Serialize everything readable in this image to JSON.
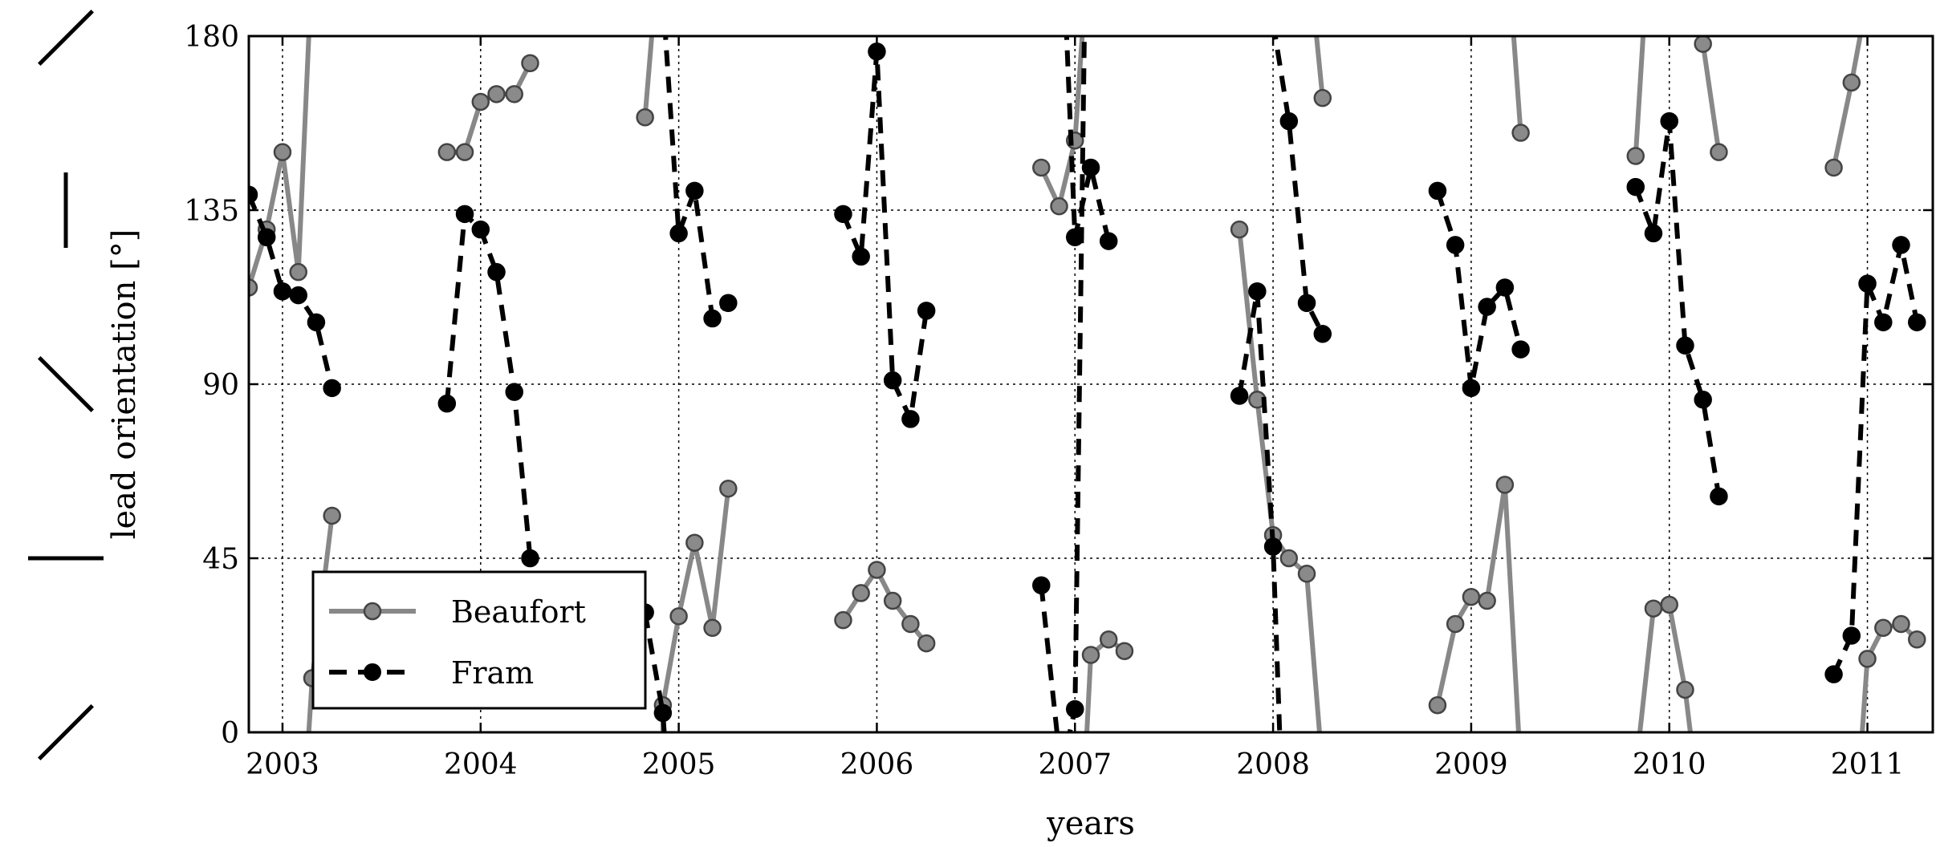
{
  "chart_data": {
    "type": "line",
    "xlabel": "years",
    "ylabel": "lead orientation [°]",
    "xlim": [
      2002.83,
      2011.33
    ],
    "ylim": [
      0,
      180
    ],
    "xticks": [
      2003,
      2004,
      2005,
      2006,
      2007,
      2008,
      2009,
      2010,
      2011
    ],
    "xtick_labels": [
      "2003",
      "2004",
      "2005",
      "2006",
      "2007",
      "2008",
      "2009",
      "2010",
      "2011"
    ],
    "yticks": [
      0,
      45,
      90,
      135,
      180
    ],
    "ytick_labels": [
      "0",
      "45",
      "90",
      "135",
      "180"
    ],
    "grid": true,
    "legend_position": "lower-left",
    "orientation_glyphs": [
      {
        "angle": 0,
        "label": "0"
      },
      {
        "angle": 45,
        "label": "45"
      },
      {
        "angle": 90,
        "label": "90"
      },
      {
        "angle": 135,
        "label": "135"
      },
      {
        "angle": 180,
        "label": "180"
      }
    ],
    "series": [
      {
        "name": "Beaufort",
        "color": "#888888",
        "linestyle": "solid",
        "marker": "circle-open-gray",
        "segments": [
          [
            [
              2002.83,
              115
            ],
            [
              2002.92,
              130
            ],
            [
              2003.0,
              150
            ],
            [
              2003.08,
              119
            ],
            [
              2003.15,
              200
            ]
          ],
          [
            [
              2003.12,
              -10
            ],
            [
              2003.15,
              14
            ],
            [
              2003.25,
              56
            ]
          ],
          [
            [
              2003.83,
              150
            ],
            [
              2003.92,
              150
            ],
            [
              2004.0,
              163
            ],
            [
              2004.08,
              165
            ],
            [
              2004.17,
              165
            ],
            [
              2004.25,
              173
            ]
          ],
          [
            [
              2004.83,
              159
            ],
            [
              2004.88,
              190
            ]
          ],
          [
            [
              2004.92,
              -10
            ],
            [
              2004.92,
              7
            ],
            [
              2005.0,
              30
            ],
            [
              2005.08,
              49
            ],
            [
              2005.17,
              27
            ],
            [
              2005.25,
              63
            ]
          ],
          [
            [
              2005.83,
              29
            ],
            [
              2005.92,
              36
            ],
            [
              2006.0,
              42
            ],
            [
              2006.08,
              34
            ],
            [
              2006.17,
              28
            ],
            [
              2006.25,
              23
            ]
          ],
          [
            [
              2006.83,
              146
            ],
            [
              2006.92,
              136
            ],
            [
              2007.0,
              153
            ],
            [
              2007.05,
              190
            ]
          ],
          [
            [
              2007.05,
              -10
            ],
            [
              2007.08,
              20
            ],
            [
              2007.17,
              24
            ],
            [
              2007.25,
              21
            ]
          ],
          [
            [
              2007.83,
              130
            ],
            [
              2007.92,
              86
            ],
            [
              2008.0,
              51
            ],
            [
              2008.08,
              45
            ],
            [
              2008.17,
              41
            ],
            [
              2008.25,
              -10
            ]
          ],
          [
            [
              2008.2,
              190
            ],
            [
              2008.25,
              164
            ]
          ],
          [
            [
              2008.83,
              7
            ],
            [
              2008.92,
              28
            ],
            [
              2009.0,
              35
            ],
            [
              2009.08,
              34
            ],
            [
              2009.17,
              64
            ],
            [
              2009.25,
              -10
            ]
          ],
          [
            [
              2009.2,
              190
            ],
            [
              2009.25,
              155
            ]
          ],
          [
            [
              2009.83,
              149
            ],
            [
              2009.88,
              190
            ]
          ],
          [
            [
              2009.83,
              -10
            ],
            [
              2009.92,
              32
            ],
            [
              2010.0,
              33
            ],
            [
              2010.08,
              11
            ],
            [
              2010.13,
              -10
            ]
          ],
          [
            [
              2010.08,
              190
            ],
            [
              2010.17,
              178
            ],
            [
              2010.25,
              150
            ]
          ],
          [
            [
              2010.83,
              146
            ],
            [
              2010.92,
              168
            ],
            [
              2011.0,
              190
            ]
          ],
          [
            [
              2010.96,
              -10
            ],
            [
              2011.0,
              19
            ],
            [
              2011.08,
              27
            ],
            [
              2011.17,
              28
            ],
            [
              2011.25,
              24
            ]
          ]
        ]
      },
      {
        "name": "Fram",
        "color": "#000000",
        "linestyle": "dashed",
        "marker": "circle-filled-black",
        "segments": [
          [
            [
              2002.83,
              139
            ],
            [
              2002.92,
              128
            ],
            [
              2003.0,
              114
            ],
            [
              2003.08,
              113
            ],
            [
              2003.17,
              106
            ],
            [
              2003.25,
              89
            ]
          ],
          [
            [
              2003.83,
              85
            ],
            [
              2003.92,
              134
            ],
            [
              2004.0,
              130
            ],
            [
              2004.08,
              119
            ],
            [
              2004.17,
              88
            ],
            [
              2004.25,
              45
            ]
          ],
          [
            [
              2004.83,
              31
            ],
            [
              2004.92,
              5
            ],
            [
              2004.94,
              -10
            ]
          ],
          [
            [
              2004.92,
              190
            ],
            [
              2005.0,
              129
            ],
            [
              2005.08,
              140
            ],
            [
              2005.17,
              107
            ],
            [
              2005.25,
              111
            ]
          ],
          [
            [
              2005.83,
              134
            ],
            [
              2005.92,
              123
            ],
            [
              2006.0,
              176
            ],
            [
              2006.08,
              91
            ],
            [
              2006.17,
              81
            ],
            [
              2006.25,
              109
            ]
          ],
          [
            [
              2006.83,
              38
            ],
            [
              2006.93,
              -10
            ]
          ],
          [
            [
              2006.95,
              190
            ],
            [
              2007.0,
              128
            ],
            [
              2007.08,
              146
            ],
            [
              2007.17,
              127
            ]
          ],
          [
            [
              2006.93,
              -10
            ],
            [
              2007.0,
              6
            ],
            [
              2007.05,
              190
            ]
          ],
          [
            [
              2007.83,
              87
            ],
            [
              2007.92,
              114
            ],
            [
              2008.0,
              48
            ],
            [
              2008.04,
              -10
            ]
          ],
          [
            [
              2007.98,
              190
            ],
            [
              2008.08,
              158
            ],
            [
              2008.17,
              111
            ],
            [
              2008.25,
              103
            ]
          ],
          [
            [
              2008.83,
              140
            ],
            [
              2008.92,
              126
            ],
            [
              2009.0,
              89
            ],
            [
              2009.08,
              110
            ],
            [
              2009.17,
              115
            ],
            [
              2009.25,
              99
            ]
          ],
          [
            [
              2009.83,
              141
            ],
            [
              2009.92,
              129
            ],
            [
              2010.0,
              158
            ],
            [
              2010.08,
              100
            ],
            [
              2010.17,
              86
            ],
            [
              2010.25,
              61
            ]
          ],
          [
            [
              2010.83,
              15
            ],
            [
              2010.92,
              25
            ],
            [
              2011.0,
              116
            ],
            [
              2011.08,
              106
            ],
            [
              2011.17,
              126
            ],
            [
              2011.25,
              106
            ]
          ]
        ]
      }
    ]
  }
}
